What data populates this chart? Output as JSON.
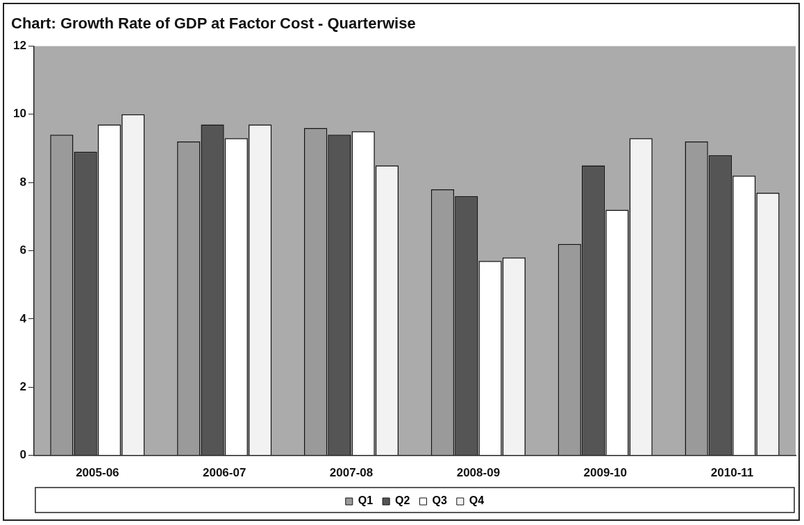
{
  "chart_data": {
    "type": "bar",
    "title": "Chart: Growth Rate of GDP at Factor Cost - Quarterwise",
    "categories": [
      "2005-06",
      "2006-07",
      "2007-08",
      "2008-09",
      "2009-10",
      "2010-11"
    ],
    "series": [
      {
        "name": "Q1",
        "color": "#9a9a9a",
        "values": [
          9.4,
          9.2,
          9.6,
          7.8,
          6.2,
          9.2
        ]
      },
      {
        "name": "Q2",
        "color": "#555555",
        "values": [
          8.9,
          9.7,
          9.4,
          7.6,
          8.5,
          8.8
        ]
      },
      {
        "name": "Q3",
        "color": "#ffffff",
        "values": [
          9.7,
          9.3,
          9.5,
          5.7,
          7.2,
          8.2
        ]
      },
      {
        "name": "Q4",
        "color": "#f2f2f2",
        "values": [
          10.0,
          9.7,
          8.5,
          5.8,
          9.3,
          7.7
        ]
      }
    ],
    "ylim": [
      0,
      12
    ],
    "yticks": [
      0,
      2,
      4,
      6,
      8,
      10,
      12
    ],
    "grid": false,
    "legend": "bottom"
  }
}
